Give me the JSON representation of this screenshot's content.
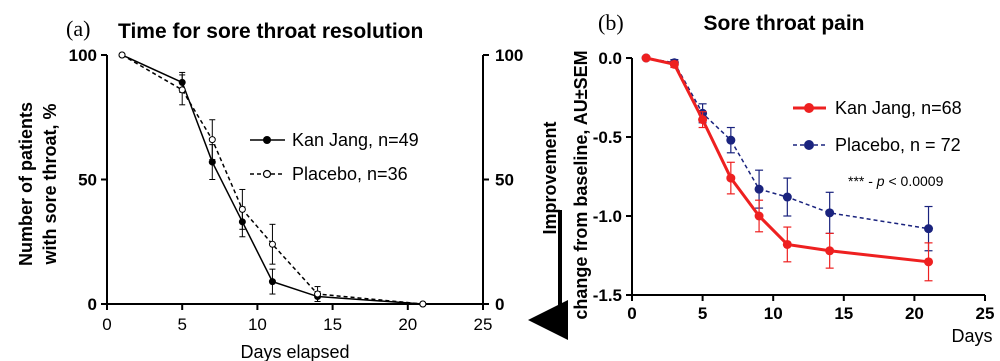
{
  "chart_data": [
    {
      "panel": "(a)",
      "type": "line",
      "title": "Time for sore throat resolution",
      "xlabel": "Days elapsed",
      "ylabel_line1": "Number of patients",
      "ylabel_line2": "with sore throat, %",
      "xlim": [
        0,
        25
      ],
      "ylim": [
        0,
        100
      ],
      "x_ticks": [
        "0",
        "5",
        "10",
        "15",
        "20",
        "25"
      ],
      "y_ticks": [
        "0",
        "50",
        "100"
      ],
      "right_y_ticks": [
        "0",
        "50",
        "100"
      ],
      "legend_position": "right",
      "series": [
        {
          "name": "Kan Jang, n=49",
          "style": "solid, filled circles",
          "x": [
            1,
            5,
            7,
            9,
            11,
            14,
            21
          ],
          "y": [
            100,
            89,
            57,
            33,
            9,
            3,
            0
          ],
          "err": [
            0,
            4,
            7,
            6,
            5,
            2,
            0
          ]
        },
        {
          "name": "Placebo, n=36",
          "style": "dashed, open circles",
          "x": [
            1,
            5,
            7,
            9,
            11,
            14,
            21
          ],
          "y": [
            100,
            86,
            66,
            38,
            24,
            4,
            0
          ],
          "err": [
            0,
            6,
            8,
            8,
            8,
            3,
            0
          ]
        }
      ]
    },
    {
      "panel": "(b)",
      "type": "line",
      "title": "Sore throat pain",
      "xlabel": "Days",
      "ylabel_line1": "Improvement",
      "ylabel_line2": "change from baseline, AU±SEM",
      "xlim": [
        0,
        25
      ],
      "ylim": [
        -1.5,
        0
      ],
      "x_ticks": [
        "0",
        "5",
        "10",
        "15",
        "20",
        "25"
      ],
      "y_ticks": [
        "0.0",
        "-0.5",
        "-1.0",
        "-1.5"
      ],
      "annotation_prefix": "*** - ",
      "annotation_p": "p",
      "annotation_suffix": " < 0.0009",
      "legend_position": "right",
      "series": [
        {
          "name": "Kan Jang, n=68",
          "color": "#ee2020",
          "style": "solid, filled circles",
          "x": [
            1,
            3,
            5,
            7,
            9,
            11,
            14,
            21
          ],
          "y": [
            0.0,
            -0.04,
            -0.39,
            -0.76,
            -1.0,
            -1.18,
            -1.22,
            -1.29
          ],
          "err": [
            0,
            0.02,
            0.05,
            0.1,
            0.1,
            0.11,
            0.11,
            0.12
          ]
        },
        {
          "name": "Placebo, n = 72",
          "color": "#1a237e",
          "style": "dashed, filled circles",
          "x": [
            1,
            3,
            5,
            7,
            9,
            11,
            14,
            21
          ],
          "y": [
            0.0,
            -0.03,
            -0.35,
            -0.52,
            -0.83,
            -0.88,
            -0.98,
            -1.08
          ],
          "err": [
            0,
            0.02,
            0.06,
            0.08,
            0.12,
            0.12,
            0.13,
            0.14
          ]
        }
      ]
    }
  ]
}
